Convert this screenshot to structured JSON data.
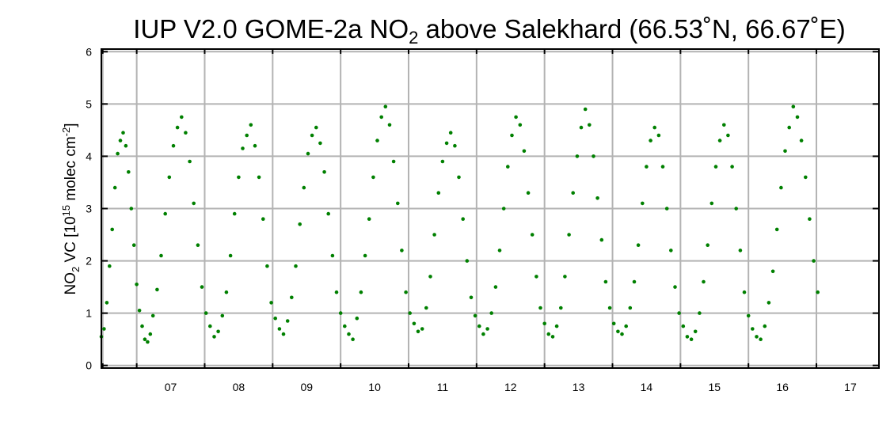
{
  "chart_data": {
    "type": "scatter",
    "title_parts": {
      "pre": "IUP V2.0 GOME-2a NO",
      "sub": "2",
      "post": " above Salekhard (66.53˚N, 66.67˚E)"
    },
    "ylabel_parts": {
      "a": "NO",
      "a_sub": "2",
      "b": " VC  [10",
      "b_sup": "15",
      "c": " molec cm",
      "c_sup": "-2",
      "d": "]"
    },
    "xlim": [
      2006.48,
      2017.92
    ],
    "ylim": [
      -0.05,
      6.05
    ],
    "x_ticks": [
      {
        "value": 2007.5,
        "label": "07"
      },
      {
        "value": 2008.5,
        "label": "08"
      },
      {
        "value": 2009.5,
        "label": "09"
      },
      {
        "value": 2010.5,
        "label": "10"
      },
      {
        "value": 2011.5,
        "label": "11"
      },
      {
        "value": 2012.5,
        "label": "12"
      },
      {
        "value": 2013.5,
        "label": "13"
      },
      {
        "value": 2014.5,
        "label": "14"
      },
      {
        "value": 2015.5,
        "label": "15"
      },
      {
        "value": 2016.5,
        "label": "16"
      },
      {
        "value": 2017.5,
        "label": "17"
      }
    ],
    "x_gridlines": [
      2006.5,
      2007.0,
      2008.0,
      2009.0,
      2010.0,
      2011.0,
      2012.0,
      2013.0,
      2014.0,
      2015.0,
      2016.0,
      2017.0
    ],
    "y_ticks": [
      {
        "value": 0,
        "label": "0"
      },
      {
        "value": 1,
        "label": "1"
      },
      {
        "value": 2,
        "label": "2"
      },
      {
        "value": 3,
        "label": "3"
      },
      {
        "value": 4,
        "label": "4"
      },
      {
        "value": 5,
        "label": "5"
      },
      {
        "value": 6,
        "label": "6"
      }
    ],
    "grid": true,
    "marker_color": "#008000",
    "series": [
      {
        "points": [
          [
            2006.48,
            0.55
          ],
          [
            2006.52,
            0.7
          ],
          [
            2006.56,
            1.2
          ],
          [
            2006.6,
            1.9
          ],
          [
            2006.64,
            2.6
          ],
          [
            2006.68,
            3.4
          ],
          [
            2006.72,
            4.05
          ],
          [
            2006.76,
            4.3
          ],
          [
            2006.8,
            4.45
          ],
          [
            2006.84,
            4.2
          ],
          [
            2006.88,
            3.7
          ],
          [
            2006.92,
            3.0
          ],
          [
            2006.96,
            2.3
          ],
          [
            2007.0,
            1.55
          ],
          [
            2007.04,
            1.05
          ],
          [
            2007.08,
            0.75
          ],
          [
            2007.12,
            0.5
          ],
          [
            2007.16,
            0.45
          ],
          [
            2007.2,
            0.6
          ],
          [
            2007.24,
            0.95
          ],
          [
            2007.3,
            1.45
          ],
          [
            2007.36,
            2.1
          ],
          [
            2007.42,
            2.9
          ],
          [
            2007.48,
            3.6
          ],
          [
            2007.54,
            4.2
          ],
          [
            2007.6,
            4.55
          ],
          [
            2007.66,
            4.75
          ],
          [
            2007.72,
            4.45
          ],
          [
            2007.78,
            3.9
          ],
          [
            2007.84,
            3.1
          ],
          [
            2007.9,
            2.3
          ],
          [
            2007.96,
            1.5
          ],
          [
            2008.02,
            1.0
          ],
          [
            2008.08,
            0.75
          ],
          [
            2008.14,
            0.55
          ],
          [
            2008.2,
            0.65
          ],
          [
            2008.26,
            0.95
          ],
          [
            2008.32,
            1.4
          ],
          [
            2008.38,
            2.1
          ],
          [
            2008.44,
            2.9
          ],
          [
            2008.5,
            3.6
          ],
          [
            2008.56,
            4.15
          ],
          [
            2008.62,
            4.4
          ],
          [
            2008.68,
            4.6
          ],
          [
            2008.74,
            4.2
          ],
          [
            2008.8,
            3.6
          ],
          [
            2008.86,
            2.8
          ],
          [
            2008.92,
            1.9
          ],
          [
            2008.98,
            1.2
          ],
          [
            2009.04,
            0.9
          ],
          [
            2009.1,
            0.7
          ],
          [
            2009.16,
            0.6
          ],
          [
            2009.22,
            0.85
          ],
          [
            2009.28,
            1.3
          ],
          [
            2009.34,
            1.9
          ],
          [
            2009.4,
            2.7
          ],
          [
            2009.46,
            3.4
          ],
          [
            2009.52,
            4.05
          ],
          [
            2009.58,
            4.4
          ],
          [
            2009.64,
            4.55
          ],
          [
            2009.7,
            4.25
          ],
          [
            2009.76,
            3.7
          ],
          [
            2009.82,
            2.9
          ],
          [
            2009.88,
            2.1
          ],
          [
            2009.94,
            1.4
          ],
          [
            2010.0,
            1.0
          ],
          [
            2010.06,
            0.75
          ],
          [
            2010.12,
            0.6
          ],
          [
            2010.18,
            0.5
          ],
          [
            2010.24,
            0.9
          ],
          [
            2010.3,
            1.4
          ],
          [
            2010.36,
            2.1
          ],
          [
            2010.42,
            2.8
          ],
          [
            2010.48,
            3.6
          ],
          [
            2010.54,
            4.3
          ],
          [
            2010.6,
            4.75
          ],
          [
            2010.66,
            4.95
          ],
          [
            2010.72,
            4.6
          ],
          [
            2010.78,
            3.9
          ],
          [
            2010.84,
            3.1
          ],
          [
            2010.9,
            2.2
          ],
          [
            2010.96,
            1.4
          ],
          [
            2011.02,
            1.0
          ],
          [
            2011.08,
            0.8
          ],
          [
            2011.14,
            0.65
          ],
          [
            2011.2,
            0.7
          ],
          [
            2011.26,
            1.1
          ],
          [
            2011.32,
            1.7
          ],
          [
            2011.38,
            2.5
          ],
          [
            2011.44,
            3.3
          ],
          [
            2011.5,
            3.9
          ],
          [
            2011.56,
            4.25
          ],
          [
            2011.62,
            4.45
          ],
          [
            2011.68,
            4.2
          ],
          [
            2011.74,
            3.6
          ],
          [
            2011.8,
            2.8
          ],
          [
            2011.86,
            2.0
          ],
          [
            2011.92,
            1.3
          ],
          [
            2011.98,
            0.95
          ],
          [
            2012.04,
            0.75
          ],
          [
            2012.1,
            0.6
          ],
          [
            2012.16,
            0.7
          ],
          [
            2012.22,
            1.0
          ],
          [
            2012.28,
            1.5
          ],
          [
            2012.34,
            2.2
          ],
          [
            2012.4,
            3.0
          ],
          [
            2012.46,
            3.8
          ],
          [
            2012.52,
            4.4
          ],
          [
            2012.58,
            4.75
          ],
          [
            2012.64,
            4.6
          ],
          [
            2012.7,
            4.1
          ],
          [
            2012.76,
            3.3
          ],
          [
            2012.82,
            2.5
          ],
          [
            2012.88,
            1.7
          ],
          [
            2012.94,
            1.1
          ],
          [
            2013.0,
            0.8
          ],
          [
            2013.06,
            0.6
          ],
          [
            2013.12,
            0.55
          ],
          [
            2013.18,
            0.75
          ],
          [
            2013.24,
            1.1
          ],
          [
            2013.3,
            1.7
          ],
          [
            2013.36,
            2.5
          ],
          [
            2013.42,
            3.3
          ],
          [
            2013.48,
            4.0
          ],
          [
            2013.54,
            4.55
          ],
          [
            2013.6,
            4.9
          ],
          [
            2013.66,
            4.6
          ],
          [
            2013.72,
            4.0
          ],
          [
            2013.78,
            3.2
          ],
          [
            2013.84,
            2.4
          ],
          [
            2013.9,
            1.6
          ],
          [
            2013.96,
            1.1
          ],
          [
            2014.02,
            0.8
          ],
          [
            2014.08,
            0.65
          ],
          [
            2014.14,
            0.6
          ],
          [
            2014.2,
            0.75
          ],
          [
            2014.26,
            1.1
          ],
          [
            2014.32,
            1.6
          ],
          [
            2014.38,
            2.3
          ],
          [
            2014.44,
            3.1
          ],
          [
            2014.5,
            3.8
          ],
          [
            2014.56,
            4.3
          ],
          [
            2014.62,
            4.55
          ],
          [
            2014.68,
            4.4
          ],
          [
            2014.74,
            3.8
          ],
          [
            2014.8,
            3.0
          ],
          [
            2014.86,
            2.2
          ],
          [
            2014.92,
            1.5
          ],
          [
            2014.98,
            1.0
          ],
          [
            2015.04,
            0.75
          ],
          [
            2015.1,
            0.55
          ],
          [
            2015.16,
            0.5
          ],
          [
            2015.22,
            0.65
          ],
          [
            2015.28,
            1.0
          ],
          [
            2015.34,
            1.6
          ],
          [
            2015.4,
            2.3
          ],
          [
            2015.46,
            3.1
          ],
          [
            2015.52,
            3.8
          ],
          [
            2015.58,
            4.3
          ],
          [
            2015.64,
            4.6
          ],
          [
            2015.7,
            4.4
          ],
          [
            2015.76,
            3.8
          ],
          [
            2015.82,
            3.0
          ],
          [
            2015.88,
            2.2
          ],
          [
            2015.94,
            1.4
          ],
          [
            2016.0,
            0.95
          ],
          [
            2016.06,
            0.7
          ],
          [
            2016.12,
            0.55
          ],
          [
            2016.18,
            0.5
          ],
          [
            2016.24,
            0.75
          ],
          [
            2016.3,
            1.2
          ],
          [
            2016.36,
            1.8
          ],
          [
            2016.42,
            2.6
          ],
          [
            2016.48,
            3.4
          ],
          [
            2016.54,
            4.1
          ],
          [
            2016.6,
            4.55
          ],
          [
            2016.66,
            4.95
          ],
          [
            2016.72,
            4.75
          ],
          [
            2016.78,
            4.3
          ],
          [
            2016.84,
            3.6
          ],
          [
            2016.9,
            2.8
          ],
          [
            2016.96,
            2.0
          ],
          [
            2017.02,
            1.4
          ]
        ]
      }
    ]
  }
}
